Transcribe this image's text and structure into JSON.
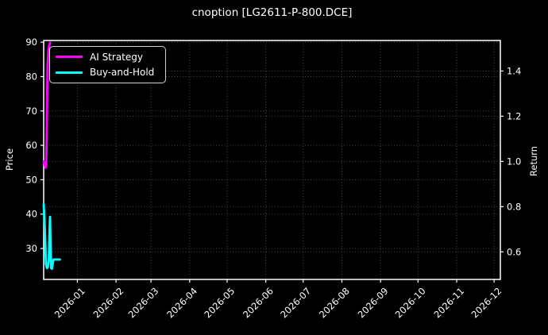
{
  "chart_data": {
    "type": "line",
    "title": "cnoption [LG2611-P-800.DCE]",
    "colors": {
      "background": "#000000",
      "text": "#ffffff",
      "grid": "#4a4a4a",
      "spine": "#ffffff"
    },
    "x_axis": {
      "tick_labels": [
        "2026-01",
        "2026-02",
        "2026-03",
        "2026-04",
        "2026-05",
        "2026-06",
        "2026-07",
        "2026-08",
        "2026-09",
        "2026-10",
        "2026-11",
        "2026-12"
      ],
      "tick_positions_days": [
        27,
        58,
        86,
        117,
        147,
        178,
        208,
        239,
        270,
        300,
        331,
        361
      ],
      "xlim_days": [
        0,
        366
      ],
      "rotation_deg": 45
    },
    "left_axis": {
      "label": "Price",
      "tick_values": [
        90,
        80,
        70,
        60,
        50,
        40,
        30
      ],
      "tick_labels": [
        "90",
        "80",
        "70",
        "60",
        "50",
        "40",
        "30"
      ],
      "ylim": [
        21.0,
        90.5
      ]
    },
    "right_axis": {
      "label": "Return",
      "tick_values": [
        1.4,
        1.2,
        1.0,
        0.8,
        0.6
      ],
      "tick_labels": [
        "1.4",
        "1.2",
        "1.0",
        "0.8",
        "0.6"
      ],
      "ylim": [
        0.478,
        1.535
      ]
    },
    "legend": {
      "position": "upper-left"
    },
    "grid": "dotted-both-axes",
    "series": [
      {
        "name": "AI Strategy",
        "color": "#ff00ff",
        "axis": "right",
        "points": [
          [
            0,
            1.0
          ],
          [
            0.8,
            0.985
          ],
          [
            1.6,
            0.972
          ],
          [
            2.0,
            0.99
          ],
          [
            2.4,
            1.1
          ],
          [
            2.8,
            1.3
          ],
          [
            3.2,
            1.43
          ],
          [
            3.8,
            1.49
          ],
          [
            4.5,
            1.515
          ],
          [
            5.2,
            1.525
          ]
        ]
      },
      {
        "name": "Buy-and-Hold",
        "color": "#00ffff",
        "axis": "left",
        "points": [
          [
            0,
            42.8
          ],
          [
            0.9,
            36.0
          ],
          [
            1.8,
            25.5
          ],
          [
            2.6,
            24.3
          ],
          [
            3.4,
            24.6
          ],
          [
            4.2,
            27.0
          ],
          [
            4.8,
            36.0
          ],
          [
            5.1,
            39.2
          ],
          [
            5.5,
            32.0
          ],
          [
            6.0,
            24.3
          ],
          [
            6.6,
            24.1
          ],
          [
            7.2,
            25.5
          ],
          [
            7.8,
            26.8
          ],
          [
            13,
            26.8
          ]
        ]
      }
    ]
  }
}
